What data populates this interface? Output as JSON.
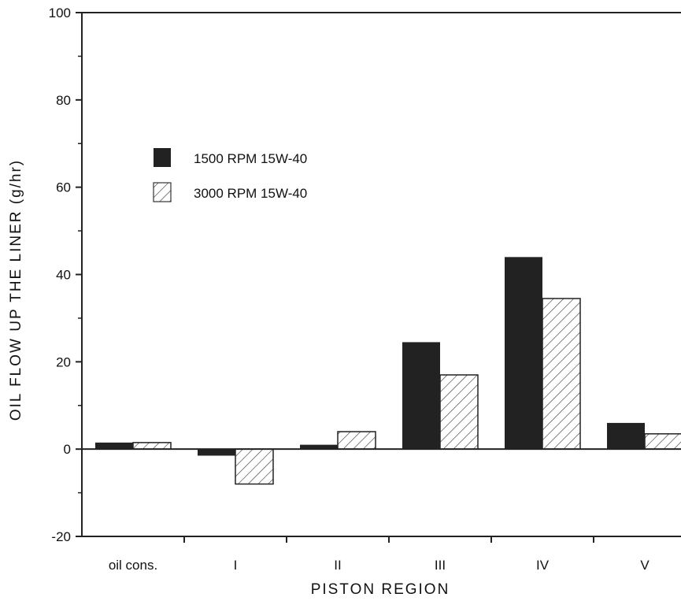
{
  "chart_data": {
    "type": "bar",
    "title": "",
    "xlabel": "PISTON REGION",
    "ylabel": "OIL FLOW UP THE LINER (g/hr)",
    "categories": [
      "oil cons.",
      "I",
      "II",
      "III",
      "IV",
      "V"
    ],
    "series": [
      {
        "name": "1500 RPM 15W-40",
        "values": [
          1.5,
          -1.5,
          1,
          24.5,
          44,
          6
        ],
        "color": "#222222",
        "fill": "solid"
      },
      {
        "name": "3000 RPM 15W-40",
        "values": [
          1.5,
          -8,
          4,
          17,
          34.5,
          3.5
        ],
        "color": "#333333",
        "fill": "hatched"
      }
    ],
    "ylim": [
      -20,
      100
    ],
    "yticks": [
      -20,
      0,
      20,
      40,
      60,
      80,
      100
    ],
    "grid": false,
    "legend_position": "upper-left"
  }
}
